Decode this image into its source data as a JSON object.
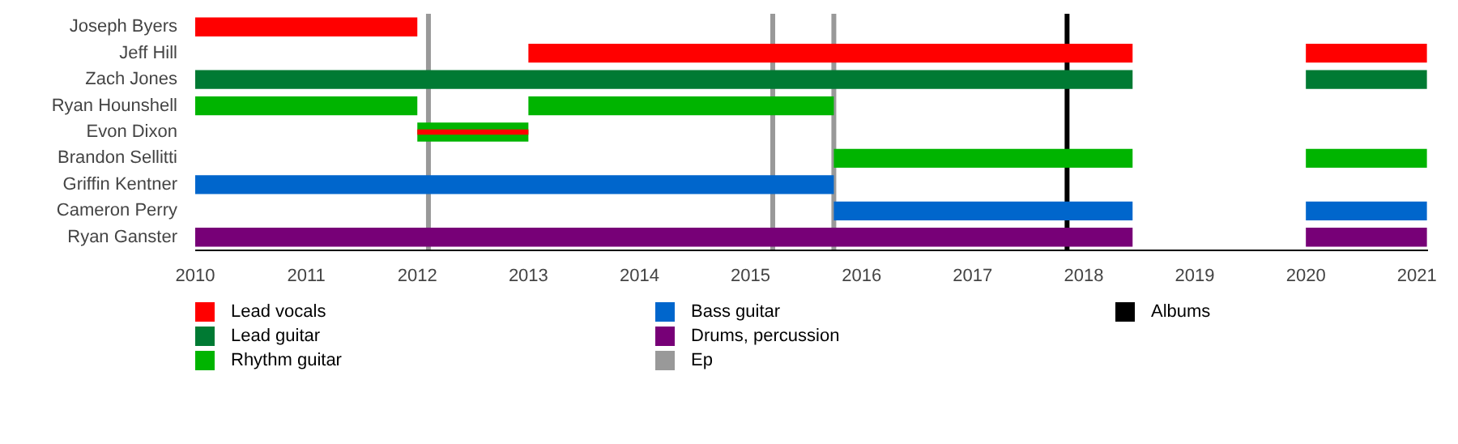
{
  "chart_data": {
    "type": "bar",
    "orientation": "horizontal",
    "categories": [
      "Joseph Byers",
      "Jeff Hill",
      "Zach Jones",
      "Ryan Hounshell",
      "Evon Dixon",
      "Brandon Sellitti",
      "Griffin Kentner",
      "Cameron Perry",
      "Ryan Ganster"
    ],
    "series": [
      {
        "name": "Lead vocals",
        "color": "#ff0000",
        "base": [
          2010,
          2013,
          null,
          null,
          null,
          null,
          null,
          null,
          null
        ],
        "values": [
          2,
          5.44,
          null,
          null,
          null,
          null,
          null,
          null,
          null
        ]
      },
      {
        "name": "Lead guitar",
        "color": "#007a33",
        "base": [
          null,
          null,
          2010,
          null,
          null,
          null,
          null,
          null,
          null
        ],
        "values": [
          null,
          null,
          8.44,
          null,
          null,
          null,
          null,
          null,
          null
        ]
      },
      {
        "name": "Rhythm guitar",
        "color": "#00b400",
        "base": [
          null,
          null,
          null,
          2010,
          2012,
          2015.75,
          null,
          null,
          null
        ],
        "values": [
          null,
          null,
          null,
          2,
          1,
          2.69,
          null,
          null,
          null
        ]
      },
      {
        "name": "Bass guitar",
        "color": "#0066cc",
        "base": [
          null,
          null,
          null,
          null,
          null,
          null,
          2010,
          2015.75,
          null
        ],
        "values": [
          null,
          null,
          null,
          null,
          null,
          null,
          5.75,
          2.69,
          null
        ]
      },
      {
        "name": "Drums, percussion",
        "color": "#770077",
        "base": [
          null,
          null,
          null,
          null,
          null,
          null,
          null,
          null,
          2010
        ],
        "values": [
          null,
          null,
          null,
          null,
          null,
          null,
          null,
          null,
          8.44
        ]
      },
      {
        "color": "#ff0000",
        "base": [
          null,
          2020,
          null,
          null,
          2012,
          null,
          null,
          null,
          null
        ],
        "values": [
          null,
          1.09,
          null,
          null,
          1,
          null,
          null,
          null,
          null
        ]
      },
      {
        "color": "#007a33",
        "base": [
          null,
          null,
          2020,
          null,
          null,
          null,
          null,
          null,
          null
        ],
        "values": [
          null,
          null,
          1.09,
          null,
          null,
          null,
          null,
          null,
          null
        ]
      },
      {
        "color": "#00b400",
        "base": [
          null,
          null,
          null,
          2013,
          null,
          2020,
          null,
          null,
          null
        ],
        "values": [
          null,
          null,
          null,
          2.75,
          null,
          1.09,
          null,
          null,
          null
        ]
      },
      {
        "color": "#0066cc",
        "base": [
          null,
          null,
          null,
          null,
          null,
          null,
          null,
          2020,
          null
        ],
        "values": [
          null,
          null,
          null,
          null,
          null,
          null,
          null,
          1.09,
          null
        ]
      },
      {
        "color": "#770077",
        "base": [
          null,
          null,
          null,
          null,
          null,
          null,
          null,
          null,
          2020
        ],
        "values": [
          null,
          null,
          null,
          null,
          null,
          null,
          null,
          null,
          1.09
        ]
      }
    ],
    "ref_lines": [
      {
        "axis": "x",
        "value": 2012.1,
        "label": "Ep",
        "color": "#999999"
      },
      {
        "axis": "x",
        "value": 2015.2,
        "color": "#999999"
      },
      {
        "axis": "x",
        "value": 2015.75,
        "color": "#999999"
      },
      {
        "axis": "x",
        "value": 2017.85,
        "label": "Albums",
        "color": "#000000"
      }
    ],
    "xlim": [
      2010,
      2021.1
    ],
    "xticks": [
      2010,
      2011,
      2012,
      2013,
      2014,
      2015,
      2016,
      2017,
      2018,
      2019,
      2020,
      2021
    ],
    "grid": false,
    "legend": "bottom"
  }
}
